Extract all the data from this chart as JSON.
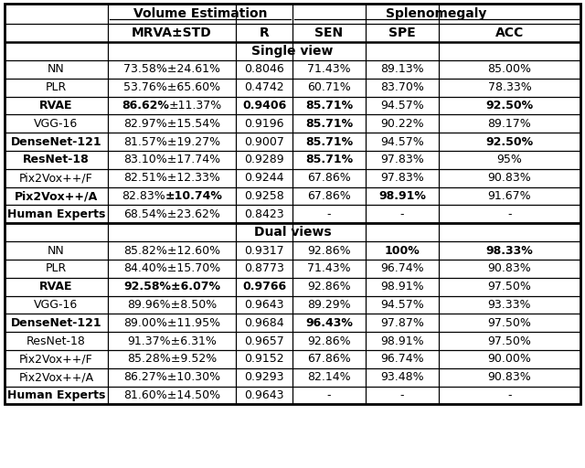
{
  "col_headers": [
    "MRVA±STD",
    "R",
    "SEN",
    "SPE",
    "ACC"
  ],
  "section1_title": "Single view",
  "section2_title": "Dual views",
  "section1_rows": [
    [
      "NN",
      "73.58%±24.61%",
      "0.8046",
      "71.43%",
      "89.13%",
      "85.00%"
    ],
    [
      "PLR",
      "53.76%±65.60%",
      "0.4742",
      "60.71%",
      "83.70%",
      "78.33%"
    ],
    [
      "RVAE",
      "86.62%±11.37%",
      "0.9406",
      "85.71%",
      "94.57%",
      "92.50%"
    ],
    [
      "VGG-16",
      "82.97%±15.54%",
      "0.9196",
      "85.71%",
      "90.22%",
      "89.17%"
    ],
    [
      "DenseNet-121",
      "81.57%±19.27%",
      "0.9007",
      "85.71%",
      "94.57%",
      "92.50%"
    ],
    [
      "ResNet-18",
      "83.10%±17.74%",
      "0.9289",
      "85.71%",
      "97.83%",
      "95%"
    ],
    [
      "Pix2Vox++/F",
      "82.51%±12.33%",
      "0.9244",
      "67.86%",
      "97.83%",
      "90.83%"
    ],
    [
      "Pix2Vox++/A",
      "82.83%±10.74%",
      "0.9258",
      "67.86%",
      "98.91%",
      "91.67%"
    ],
    [
      "Human Experts",
      "68.54%±23.62%",
      "0.8423",
      "-",
      "-",
      "-"
    ]
  ],
  "section2_rows": [
    [
      "NN",
      "85.82%±12.60%",
      "0.9317",
      "92.86%",
      "100%",
      "98.33%"
    ],
    [
      "PLR",
      "84.40%±15.70%",
      "0.8773",
      "71.43%",
      "96.74%",
      "90.83%"
    ],
    [
      "RVAE",
      "92.58%±6.07%",
      "0.9766",
      "92.86%",
      "98.91%",
      "97.50%"
    ],
    [
      "VGG-16",
      "89.96%±8.50%",
      "0.9643",
      "89.29%",
      "94.57%",
      "93.33%"
    ],
    [
      "DenseNet-121",
      "89.00%±11.95%",
      "0.9684",
      "96.43%",
      "97.87%",
      "97.50%"
    ],
    [
      "ResNet-18",
      "91.37%±6.31%",
      "0.9657",
      "92.86%",
      "98.91%",
      "97.50%"
    ],
    [
      "Pix2Vox++/F",
      "85.28%±9.52%",
      "0.9152",
      "67.86%",
      "96.74%",
      "90.00%"
    ],
    [
      "Pix2Vox++/A",
      "86.27%±10.30%",
      "0.9293",
      "82.14%",
      "93.48%",
      "90.83%"
    ],
    [
      "Human Experts",
      "81.60%±14.50%",
      "0.9643",
      "-",
      "-",
      "-"
    ]
  ],
  "s1_bold": [
    [
      false,
      false,
      false,
      false,
      false,
      false
    ],
    [
      false,
      false,
      false,
      false,
      false,
      false
    ],
    [
      true,
      "partial_start",
      true,
      true,
      false,
      true
    ],
    [
      false,
      false,
      false,
      true,
      false,
      false
    ],
    [
      true,
      false,
      false,
      true,
      false,
      true
    ],
    [
      true,
      false,
      false,
      true,
      false,
      false
    ],
    [
      false,
      false,
      false,
      false,
      false,
      false
    ],
    [
      true,
      "partial_end",
      false,
      false,
      true,
      false
    ],
    [
      true,
      false,
      false,
      false,
      false,
      false
    ]
  ],
  "s2_bold": [
    [
      false,
      false,
      false,
      false,
      true,
      true
    ],
    [
      false,
      false,
      false,
      false,
      false,
      false
    ],
    [
      true,
      true,
      true,
      false,
      false,
      false
    ],
    [
      false,
      false,
      false,
      false,
      false,
      false
    ],
    [
      true,
      false,
      false,
      true,
      false,
      false
    ],
    [
      false,
      false,
      false,
      false,
      false,
      false
    ],
    [
      false,
      false,
      false,
      false,
      false,
      false
    ],
    [
      false,
      false,
      false,
      false,
      false,
      false
    ],
    [
      true,
      false,
      false,
      false,
      false,
      false
    ]
  ],
  "bg_color": "#ffffff",
  "fontsize": 9.0,
  "fs_header": 10.0,
  "fs_section": 10.0
}
